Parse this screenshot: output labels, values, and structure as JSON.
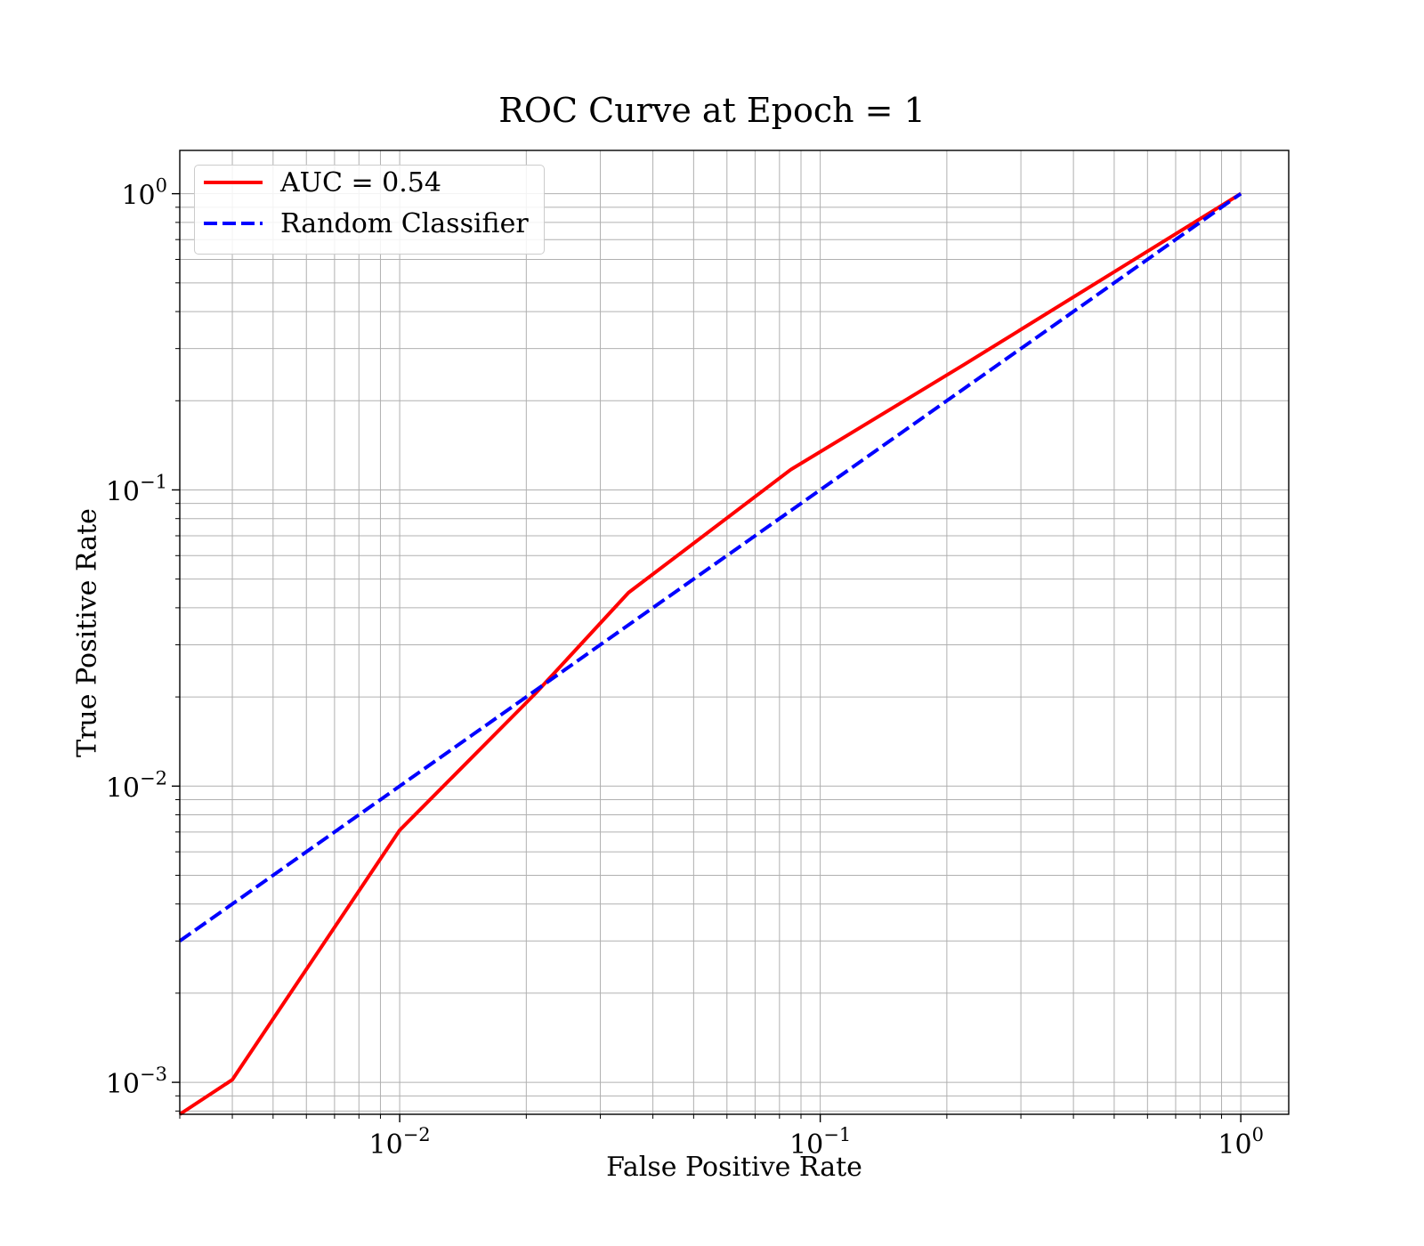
{
  "chart_data": {
    "type": "line",
    "title": "ROC Curve at Epoch = 1",
    "xlabel": "False Positive Rate",
    "ylabel": "True Positive Rate",
    "xscale": "log",
    "yscale": "log",
    "xlim": [
      0.003,
      1.3
    ],
    "ylim": [
      0.00078,
      1.4
    ],
    "grid": true,
    "grid_minor": true,
    "legend_position": "top-left",
    "x_tick_labels": [
      {
        "value": 0.01,
        "base": "10",
        "exp": "−2"
      },
      {
        "value": 0.1,
        "base": "10",
        "exp": "−1"
      },
      {
        "value": 1,
        "base": "10",
        "exp": "0"
      }
    ],
    "y_tick_labels": [
      {
        "value": 0.001,
        "base": "10",
        "exp": "−3"
      },
      {
        "value": 0.01,
        "base": "10",
        "exp": "−2"
      },
      {
        "value": 0.1,
        "base": "10",
        "exp": "−1"
      },
      {
        "value": 1,
        "base": "10",
        "exp": "0"
      }
    ],
    "series": [
      {
        "name": "AUC = 0.54",
        "color": "#ff0000",
        "style": "solid",
        "x": [
          0.003,
          0.004,
          0.01,
          0.021,
          0.035,
          0.085,
          0.22,
          1.0
        ],
        "y": [
          0.00078,
          0.00102,
          0.0071,
          0.0205,
          0.045,
          0.117,
          0.265,
          1.0
        ]
      },
      {
        "name": "Random Classifier",
        "color": "#0000ff",
        "style": "dashed",
        "x": [
          0.003,
          1.0
        ],
        "y": [
          0.003,
          1.0
        ]
      }
    ]
  }
}
